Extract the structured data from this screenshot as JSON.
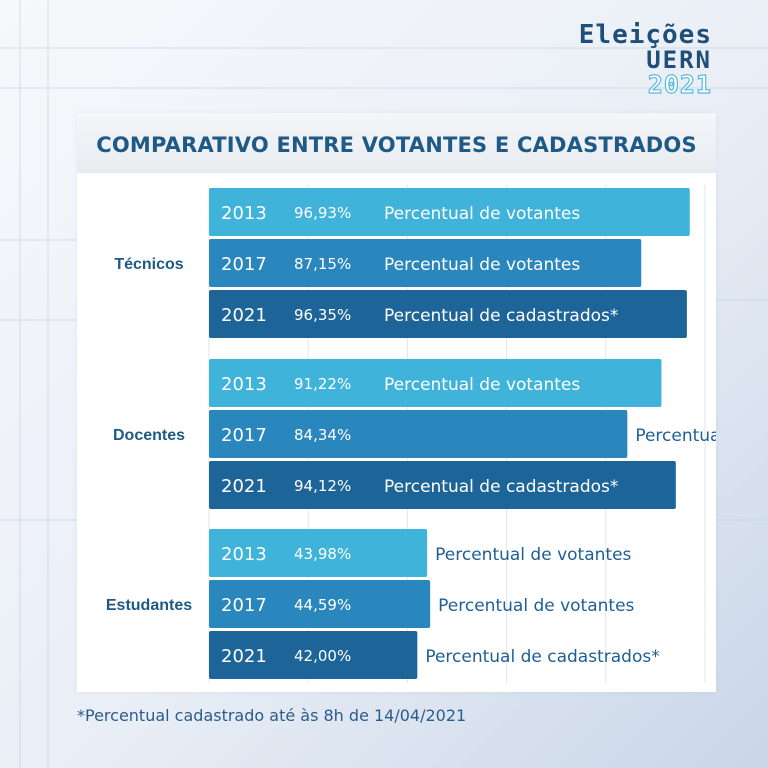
{
  "logo": {
    "line1": "Eleições",
    "line2": "UERN",
    "line3": "2021"
  },
  "footnote": "*Percentual cadastrado até às 8h de 14/04/2021",
  "colors": {
    "y2013": "#3fb3d9",
    "y2017": "#2a87bd",
    "y2021": "#1d6599",
    "group_label": "#1f5a86",
    "title": "#1f5a86"
  },
  "chart_data": {
    "type": "bar",
    "orientation": "horizontal",
    "title": "COMPARATIVO ENTRE VOTANTES E CADASTRADOS",
    "xlim": [
      0,
      100
    ],
    "grid": true,
    "groups": [
      {
        "name": "Técnicos",
        "bars": [
          {
            "year": "2013",
            "value": 96.93,
            "value_label": "96,93%",
            "label": "Percentual de votantes"
          },
          {
            "year": "2017",
            "value": 87.15,
            "value_label": "87,15%",
            "label": "Percentual de votantes"
          },
          {
            "year": "2021",
            "value": 96.35,
            "value_label": "96,35%",
            "label": "Percentual de cadastrados*"
          }
        ]
      },
      {
        "name": "Docentes",
        "bars": [
          {
            "year": "2013",
            "value": 91.22,
            "value_label": "91,22%",
            "label": "Percentual de votantes"
          },
          {
            "year": "2017",
            "value": 84.34,
            "value_label": "84,34%",
            "label": "Percentual de votantes"
          },
          {
            "year": "2021",
            "value": 94.12,
            "value_label": "94,12%",
            "label": "Percentual de cadastrados*"
          }
        ]
      },
      {
        "name": "Estudantes",
        "bars": [
          {
            "year": "2013",
            "value": 43.98,
            "value_label": "43,98%",
            "label": "Percentual de votantes"
          },
          {
            "year": "2017",
            "value": 44.59,
            "value_label": "44,59%",
            "label": "Percentual de votantes"
          },
          {
            "year": "2021",
            "value": 42.0,
            "value_label": "42,00%",
            "label": "Percentual de cadastrados*"
          }
        ]
      }
    ]
  }
}
